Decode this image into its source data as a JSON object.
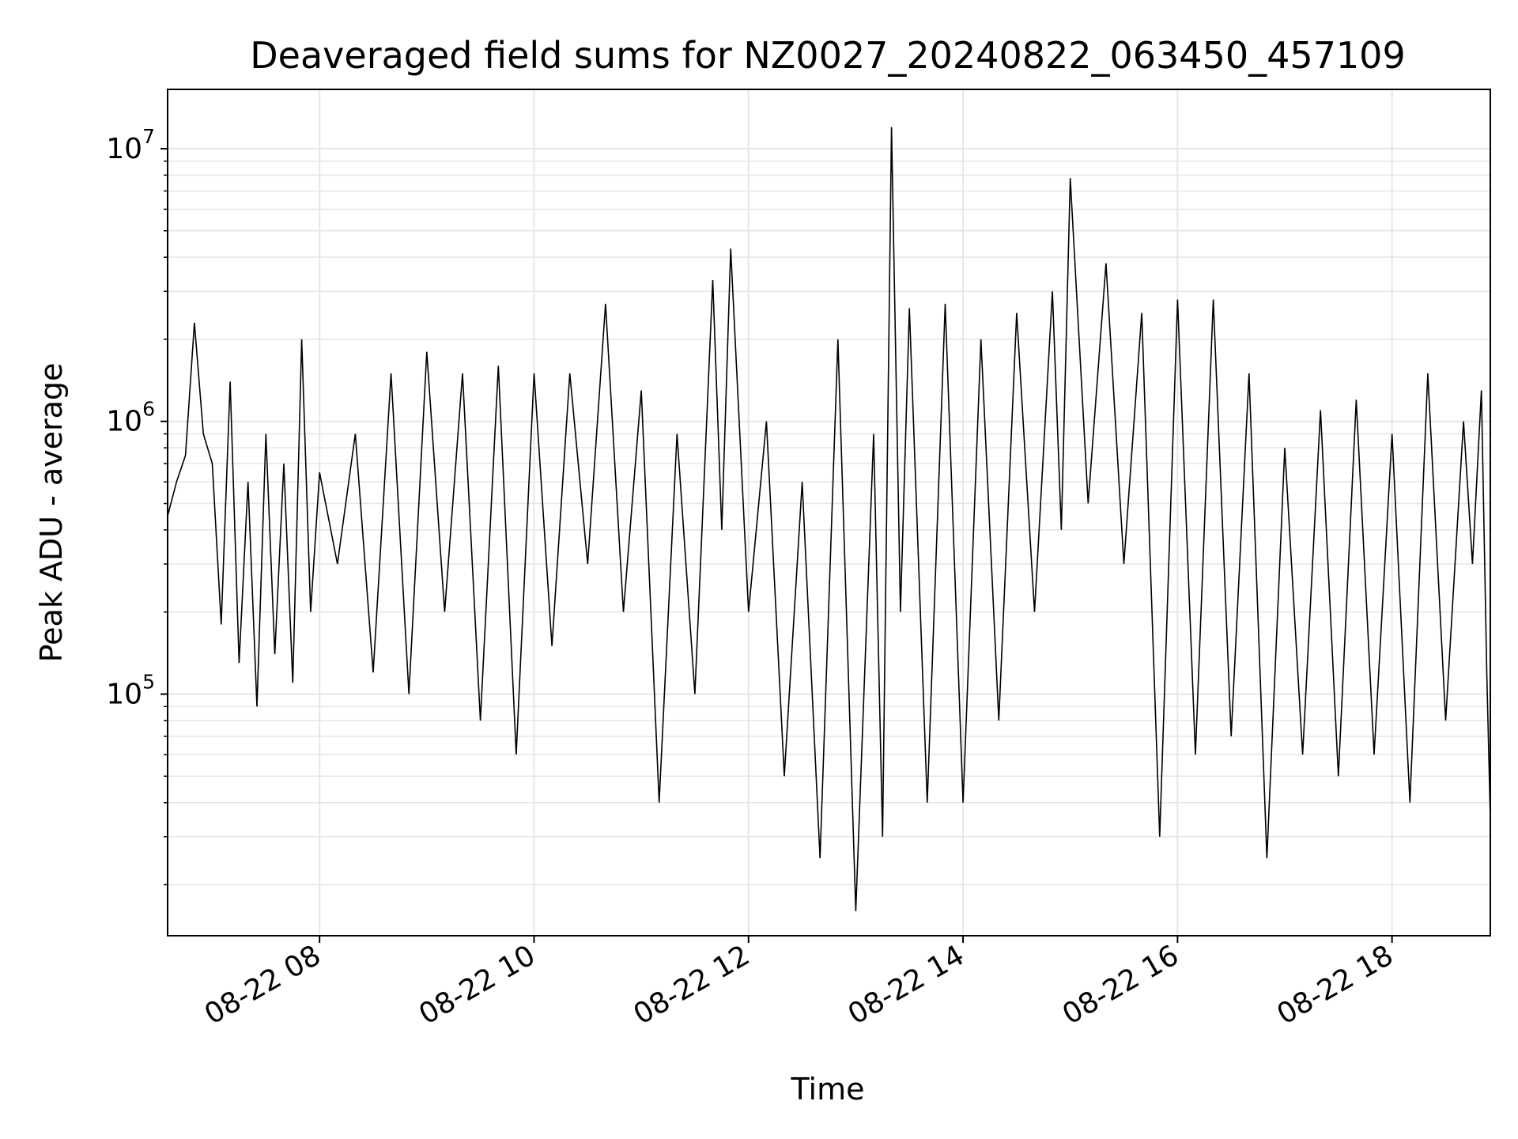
{
  "chart_data": {
    "type": "line",
    "title": "Deaveraged field sums for NZ0027_20240822_063450_457109",
    "xlabel": "Time",
    "ylabel": "Peak ADU - average",
    "x_range": [
      "08-22 06:35",
      "08-22 18:55"
    ],
    "x_ticks": [
      "08-22 08",
      "08-22 10",
      "08-22 12",
      "08-22 14",
      "08-22 16",
      "08-22 18"
    ],
    "y_scale": "log",
    "y_range": [
      13000,
      16500000
    ],
    "y_ticks": [
      {
        "base": "10",
        "exp": "5",
        "value": 100000
      },
      {
        "base": "10",
        "exp": "6",
        "value": 1000000
      },
      {
        "base": "10",
        "exp": "7",
        "value": 10000000
      }
    ],
    "grid": "major and minor",
    "line_color": "#000000",
    "grid_color": "#e6e6e6",
    "series": [
      {
        "points": [
          [
            "08-22 06:35",
            450000
          ],
          [
            "08-22 06:40",
            600000
          ],
          [
            "08-22 06:45",
            750000
          ],
          [
            "08-22 06:50",
            2300000
          ],
          [
            "08-22 06:55",
            900000
          ],
          [
            "08-22 07:00",
            700000
          ],
          [
            "08-22 07:05",
            180000
          ],
          [
            "08-22 07:10",
            1400000
          ],
          [
            "08-22 07:15",
            130000
          ],
          [
            "08-22 07:20",
            600000
          ],
          [
            "08-22 07:25",
            90000
          ],
          [
            "08-22 07:30",
            900000
          ],
          [
            "08-22 07:35",
            140000
          ],
          [
            "08-22 07:40",
            700000
          ],
          [
            "08-22 07:45",
            110000
          ],
          [
            "08-22 07:50",
            2000000
          ],
          [
            "08-22 07:55",
            200000
          ],
          [
            "08-22 08:00",
            650000
          ],
          [
            "08-22 08:10",
            300000
          ],
          [
            "08-22 08:20",
            900000
          ],
          [
            "08-22 08:30",
            120000
          ],
          [
            "08-22 08:40",
            1500000
          ],
          [
            "08-22 08:50",
            100000
          ],
          [
            "08-22 09:00",
            1800000
          ],
          [
            "08-22 09:10",
            200000
          ],
          [
            "08-22 09:20",
            1500000
          ],
          [
            "08-22 09:30",
            80000
          ],
          [
            "08-22 09:40",
            1600000
          ],
          [
            "08-22 09:50",
            60000
          ],
          [
            "08-22 10:00",
            1500000
          ],
          [
            "08-22 10:10",
            150000
          ],
          [
            "08-22 10:20",
            1500000
          ],
          [
            "08-22 10:30",
            300000
          ],
          [
            "08-22 10:40",
            2700000
          ],
          [
            "08-22 10:50",
            200000
          ],
          [
            "08-22 11:00",
            1300000
          ],
          [
            "08-22 11:10",
            40000
          ],
          [
            "08-22 11:20",
            900000
          ],
          [
            "08-22 11:30",
            100000
          ],
          [
            "08-22 11:40",
            3300000
          ],
          [
            "08-22 11:45",
            400000
          ],
          [
            "08-22 11:50",
            4300000
          ],
          [
            "08-22 12:00",
            200000
          ],
          [
            "08-22 12:10",
            1000000
          ],
          [
            "08-22 12:20",
            50000
          ],
          [
            "08-22 12:30",
            600000
          ],
          [
            "08-22 12:40",
            25000
          ],
          [
            "08-22 12:50",
            2000000
          ],
          [
            "08-22 13:00",
            16000
          ],
          [
            "08-22 13:10",
            900000
          ],
          [
            "08-22 13:15",
            30000
          ],
          [
            "08-22 13:20",
            12000000
          ],
          [
            "08-22 13:25",
            200000
          ],
          [
            "08-22 13:30",
            2600000
          ],
          [
            "08-22 13:40",
            40000
          ],
          [
            "08-22 13:50",
            2700000
          ],
          [
            "08-22 14:00",
            40000
          ],
          [
            "08-22 14:10",
            2000000
          ],
          [
            "08-22 14:20",
            80000
          ],
          [
            "08-22 14:30",
            2500000
          ],
          [
            "08-22 14:40",
            200000
          ],
          [
            "08-22 14:50",
            3000000
          ],
          [
            "08-22 14:55",
            400000
          ],
          [
            "08-22 15:00",
            7800000
          ],
          [
            "08-22 15:10",
            500000
          ],
          [
            "08-22 15:20",
            3800000
          ],
          [
            "08-22 15:30",
            300000
          ],
          [
            "08-22 15:40",
            2500000
          ],
          [
            "08-22 15:50",
            30000
          ],
          [
            "08-22 16:00",
            2800000
          ],
          [
            "08-22 16:10",
            60000
          ],
          [
            "08-22 16:20",
            2800000
          ],
          [
            "08-22 16:30",
            70000
          ],
          [
            "08-22 16:40",
            1500000
          ],
          [
            "08-22 16:50",
            25000
          ],
          [
            "08-22 17:00",
            800000
          ],
          [
            "08-22 17:10",
            60000
          ],
          [
            "08-22 17:20",
            1100000
          ],
          [
            "08-22 17:30",
            50000
          ],
          [
            "08-22 17:40",
            1200000
          ],
          [
            "08-22 17:50",
            60000
          ],
          [
            "08-22 18:00",
            900000
          ],
          [
            "08-22 18:10",
            40000
          ],
          [
            "08-22 18:20",
            1500000
          ],
          [
            "08-22 18:30",
            80000
          ],
          [
            "08-22 18:40",
            1000000
          ],
          [
            "08-22 18:45",
            300000
          ],
          [
            "08-22 18:50",
            1300000
          ],
          [
            "08-22 18:53",
            120000
          ],
          [
            "08-22 18:55",
            35000
          ]
        ]
      }
    ]
  }
}
